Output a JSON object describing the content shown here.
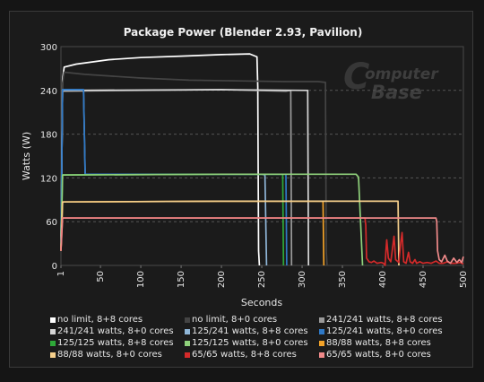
{
  "chart_data": {
    "type": "line",
    "title": "Package Power (Blender 2.93, Pavilion)",
    "xlabel": "Seconds",
    "ylabel": "Watts (W)",
    "xlim": [
      1,
      500
    ],
    "ylim": [
      0,
      300
    ],
    "xticks": [
      1,
      50,
      100,
      150,
      200,
      250,
      300,
      350,
      400,
      450,
      500
    ],
    "yticks": [
      0,
      60,
      120,
      180,
      240,
      300
    ],
    "grid": "horizontal dashed",
    "legend_position": "bottom",
    "watermark": "ComputerBase",
    "series": [
      {
        "name": "no limit, 8+8 cores",
        "color": "#ffffff",
        "points": [
          [
            1,
            25
          ],
          [
            3,
            255
          ],
          [
            5,
            272
          ],
          [
            20,
            276
          ],
          [
            60,
            282
          ],
          [
            100,
            285
          ],
          [
            150,
            287
          ],
          [
            200,
            289
          ],
          [
            235,
            290
          ],
          [
            244,
            286
          ],
          [
            245,
            245
          ],
          [
            246,
            20
          ],
          [
            247,
            0
          ]
        ]
      },
      {
        "name": "no limit, 8+0 cores",
        "color": "#444444",
        "points": [
          [
            1,
            20
          ],
          [
            3,
            250
          ],
          [
            5,
            265
          ],
          [
            30,
            262
          ],
          [
            100,
            257
          ],
          [
            160,
            254
          ],
          [
            220,
            253
          ],
          [
            280,
            252
          ],
          [
            320,
            252
          ],
          [
            329,
            251
          ],
          [
            330,
            20
          ],
          [
            331,
            0
          ]
        ]
      },
      {
        "name": "241/241 watts, 8+8 cores",
        "color": "#9a9a9a",
        "points": [
          [
            1,
            20
          ],
          [
            3,
            239
          ],
          [
            200,
            241
          ],
          [
            280,
            239
          ],
          [
            286,
            240
          ],
          [
            287,
            0
          ]
        ]
      },
      {
        "name": "241/241 watts, 8+0 cores",
        "color": "#d6d6d6",
        "points": [
          [
            1,
            20
          ],
          [
            3,
            240
          ],
          [
            200,
            241
          ],
          [
            307,
            240
          ],
          [
            308,
            0
          ]
        ]
      },
      {
        "name": "125/241 watts, 8+8 cores",
        "color": "#8fb6d8",
        "points": [
          [
            1,
            20
          ],
          [
            3,
            241
          ],
          [
            29,
            241
          ],
          [
            31,
            125
          ],
          [
            250,
            125
          ],
          [
            254,
            124
          ],
          [
            256,
            0
          ]
        ]
      },
      {
        "name": "125/241 watts, 8+0 cores",
        "color": "#2f79c7",
        "points": [
          [
            1,
            20
          ],
          [
            3,
            241
          ],
          [
            29,
            241
          ],
          [
            31,
            125
          ],
          [
            200,
            125
          ],
          [
            280,
            125
          ],
          [
            281,
            0
          ]
        ]
      },
      {
        "name": "125/125 watts, 8+8 cores",
        "color": "#2ea838",
        "points": [
          [
            1,
            20
          ],
          [
            3,
            124
          ],
          [
            200,
            125
          ],
          [
            276,
            125
          ],
          [
            277,
            0
          ]
        ]
      },
      {
        "name": "125/125 watts, 8+0 cores",
        "color": "#8fd17b",
        "points": [
          [
            1,
            20
          ],
          [
            3,
            124
          ],
          [
            200,
            125
          ],
          [
            367,
            125
          ],
          [
            370,
            121
          ],
          [
            375,
            0
          ]
        ]
      },
      {
        "name": "88/88 watts, 8+8 cores",
        "color": "#f2a229",
        "points": [
          [
            1,
            20
          ],
          [
            3,
            87
          ],
          [
            200,
            88
          ],
          [
            326,
            88
          ],
          [
            327,
            0
          ]
        ]
      },
      {
        "name": "88/88 watts, 8+0 cores",
        "color": "#f6d08c",
        "points": [
          [
            1,
            20
          ],
          [
            3,
            87
          ],
          [
            200,
            88
          ],
          [
            419,
            88
          ],
          [
            420,
            0
          ]
        ]
      },
      {
        "name": "65/65 watts, 8+8 cores",
        "color": "#d42a2a",
        "points": [
          [
            1,
            20
          ],
          [
            3,
            65
          ],
          [
            200,
            65
          ],
          [
            378,
            65
          ],
          [
            379,
            55
          ],
          [
            380,
            10
          ],
          [
            383,
            5
          ],
          [
            386,
            4
          ],
          [
            389,
            6
          ],
          [
            393,
            3
          ],
          [
            398,
            4
          ],
          [
            401,
            3
          ],
          [
            403,
            0
          ],
          [
            404,
            20
          ],
          [
            405,
            35
          ],
          [
            407,
            10
          ],
          [
            410,
            5
          ],
          [
            412,
            22
          ],
          [
            414,
            40
          ],
          [
            416,
            8
          ],
          [
            420,
            4
          ],
          [
            422,
            28
          ],
          [
            424,
            45
          ],
          [
            426,
            5
          ],
          [
            429,
            3
          ],
          [
            432,
            18
          ],
          [
            434,
            5
          ],
          [
            437,
            3
          ],
          [
            440,
            8
          ],
          [
            442,
            3
          ],
          [
            446,
            5
          ],
          [
            450,
            3
          ],
          [
            455,
            4
          ],
          [
            460,
            3
          ],
          [
            466,
            6
          ],
          [
            470,
            3
          ],
          [
            475,
            3
          ],
          [
            480,
            5
          ],
          [
            484,
            3
          ],
          [
            490,
            3
          ],
          [
            496,
            4
          ],
          [
            500,
            2
          ]
        ]
      },
      {
        "name": "65/65 watts, 8+0 cores",
        "color": "#f08a8a",
        "points": [
          [
            1,
            20
          ],
          [
            3,
            65
          ],
          [
            200,
            65
          ],
          [
            466,
            65
          ],
          [
            467,
            60
          ],
          [
            468,
            20
          ],
          [
            470,
            8
          ],
          [
            473,
            5
          ],
          [
            477,
            14
          ],
          [
            480,
            6
          ],
          [
            484,
            3
          ],
          [
            488,
            10
          ],
          [
            492,
            4
          ],
          [
            495,
            8
          ],
          [
            498,
            4
          ],
          [
            500,
            12
          ]
        ]
      }
    ]
  }
}
